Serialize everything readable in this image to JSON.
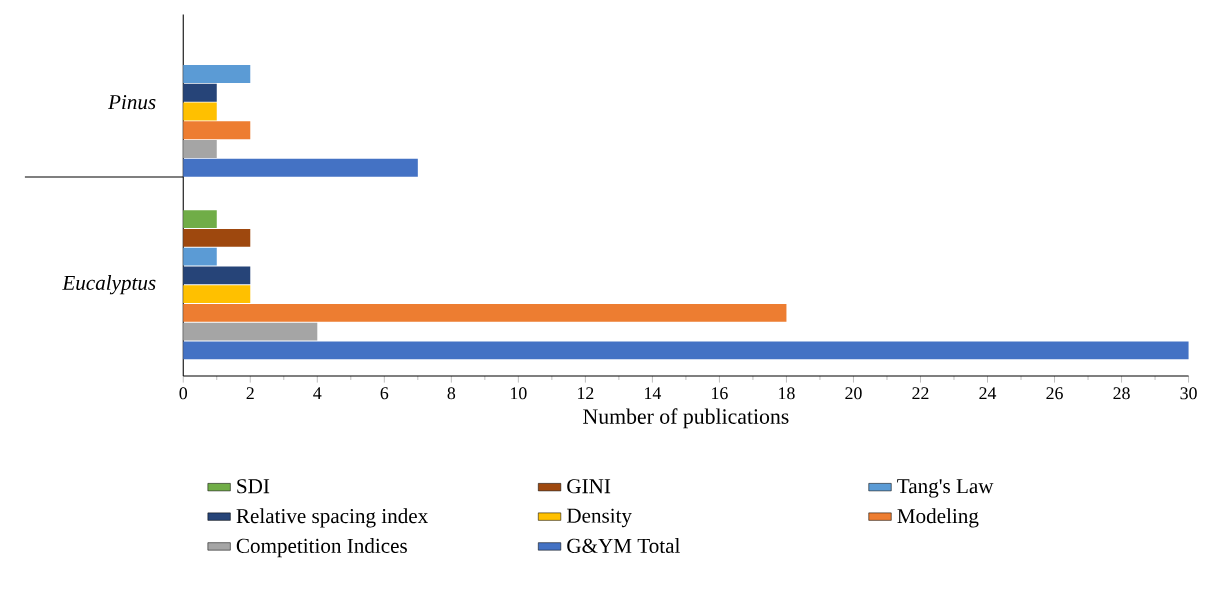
{
  "chart_data": {
    "type": "bar",
    "orientation": "horizontal",
    "categories": [
      "Pinus",
      "Eucalyptus"
    ],
    "xlabel": "Number of publications",
    "xlim": [
      0,
      30
    ],
    "xticks": [
      0,
      2,
      4,
      6,
      8,
      10,
      12,
      14,
      16,
      18,
      20,
      22,
      24,
      26,
      28,
      30
    ],
    "legend": "bottom",
    "grid": false,
    "series": [
      {
        "name": "SDI",
        "color": "#70ad47",
        "values": [
          null,
          1
        ]
      },
      {
        "name": "GINI",
        "color": "#9e480e",
        "values": [
          null,
          2
        ]
      },
      {
        "name": "Tang's Law",
        "color": "#5b9bd5",
        "values": [
          2,
          1
        ]
      },
      {
        "name": "Relative spacing index",
        "color": "#264478",
        "values": [
          1,
          2
        ]
      },
      {
        "name": "Density",
        "color": "#ffc000",
        "values": [
          1,
          2
        ]
      },
      {
        "name": "Modeling",
        "color": "#ed7d31",
        "values": [
          2,
          18
        ]
      },
      {
        "name": "Competition Indices",
        "color": "#a5a5a5",
        "values": [
          1,
          4
        ]
      },
      {
        "name": "G&YM Total",
        "color": "#4472c4",
        "values": [
          7,
          30
        ]
      }
    ]
  }
}
